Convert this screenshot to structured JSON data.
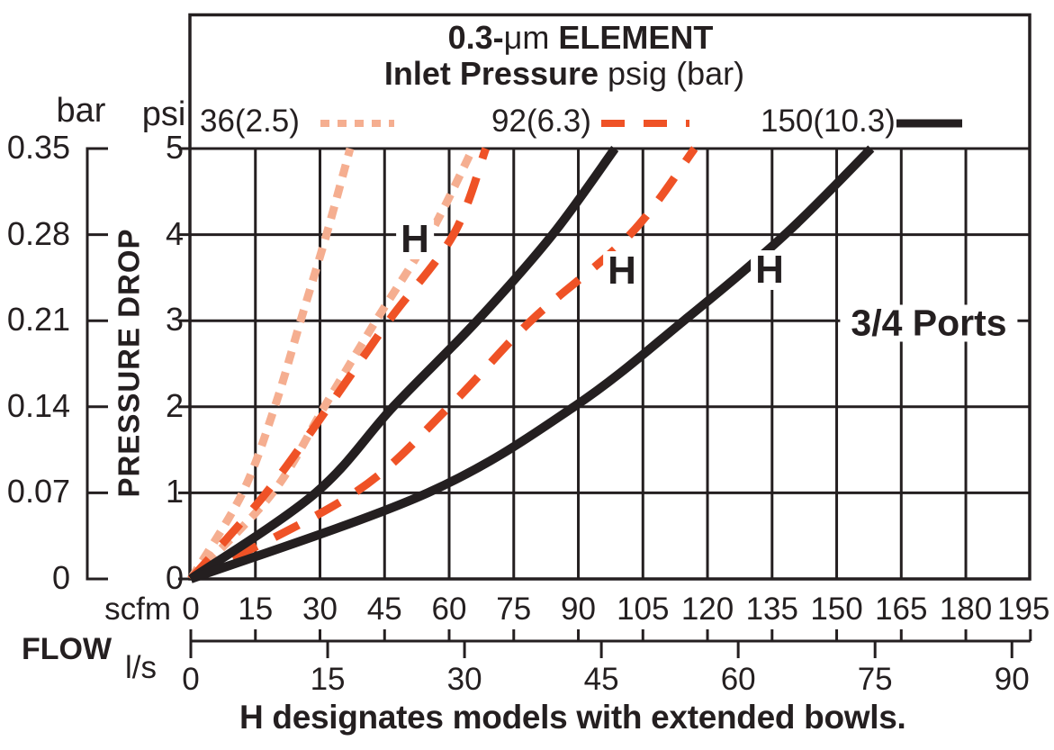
{
  "colors": {
    "ink": "#241F20",
    "peach": "#F5AE90",
    "orange": "#EF5226",
    "background": "#FFFFFF"
  },
  "title": {
    "part1": "0.3-",
    "mu_part": "μm",
    "part2": " ELEMENT",
    "line2_bold": "Inlet Pressure",
    "line2_rest": " psig (bar)"
  },
  "legend": {
    "items": [
      {
        "label": "36(2.5)",
        "color_key": "peach",
        "dash": "10 9",
        "width": 8
      },
      {
        "label": "92(6.3)",
        "color_key": "orange",
        "dash": "26 21",
        "width": 8
      },
      {
        "label": "150(10.3)",
        "color_key": "ink",
        "dash": null,
        "width": 9
      }
    ]
  },
  "axes": {
    "bar_unit": "bar",
    "psi_unit": "psi",
    "bar_ticks": [
      "0.35",
      "0.28",
      "0.21",
      "0.14",
      "0.07",
      "0"
    ],
    "psi_ticks": [
      "5",
      "4",
      "3",
      "2",
      "1",
      "0"
    ],
    "pressure_label": "PRESSURE DROP",
    "scfm_unit": "scfm",
    "scfm_ticks": [
      "0",
      "15",
      "30",
      "45",
      "60",
      "75",
      "90",
      "105",
      "120",
      "135",
      "150",
      "165",
      "180",
      "195"
    ],
    "flow_label": "FLOW",
    "ls_unit": "l/s",
    "ls_ticks": [
      "0",
      "15",
      "30",
      "45",
      "60",
      "75",
      "90"
    ]
  },
  "annotations": {
    "h_label_1": "H",
    "h_label_2": "H",
    "h_label_3": "H",
    "ports": "3/4 Ports"
  },
  "caption": "H designates models with extended bowls.",
  "chart_data": {
    "type": "line",
    "title": "0.3-μm ELEMENT",
    "subtitle": "Inlet Pressure psig (bar)",
    "xlabel": "FLOW — scfm (upper scale), l/s (lower scale)",
    "ylabel": "PRESSURE DROP — psi (inner scale), bar (outer scale)",
    "grid": true,
    "legend_position": "top",
    "annotation": "3/4 Ports",
    "note": "H designates models with extended bowls.",
    "x_axis": {
      "unit": "scfm",
      "range": [
        0,
        195
      ],
      "gridline_step": 15,
      "secondary_unit": "l/s",
      "secondary_range": [
        0,
        90
      ],
      "secondary_tick_step": 15
    },
    "y_axis": {
      "unit": "psi",
      "range": [
        0,
        5
      ],
      "gridline_step": 1,
      "secondary_unit": "bar",
      "secondary_ticks": [
        0.35,
        0.28,
        0.21,
        0.14,
        0.07,
        0
      ]
    },
    "psi_levels": [
      0,
      1,
      2,
      3,
      4,
      5
    ],
    "series": [
      {
        "key": "36-std",
        "name": "36 psig (2.5 bar) standard bowl",
        "inlet_psig": 36,
        "inlet_bar": 2.5,
        "style": "dotted",
        "color_key": "peach",
        "dash": "14 10",
        "width": 9,
        "scfm_at_psi": [
          0,
          12,
          19.5,
          25.5,
          31.5,
          37
        ]
      },
      {
        "key": "36-h",
        "name": "36 psig (2.5 bar) H extended bowl",
        "inlet_psig": 36,
        "inlet_bar": 2.5,
        "style": "dotted",
        "color_key": "peach",
        "dash": "14 10",
        "width": 9,
        "scfm_at_psi": [
          0,
          19,
          31,
          43,
          55.5,
          65.5
        ]
      },
      {
        "key": "92-std",
        "name": "92 psig (6.3 bar) standard bowl",
        "inlet_psig": 92,
        "inlet_bar": 6.3,
        "style": "dashed",
        "color_key": "orange",
        "dash": "30 22",
        "width": 9,
        "scfm_at_psi": [
          0,
          17.5,
          32,
          46,
          61,
          68.5
        ]
      },
      {
        "key": "92-h",
        "name": "92 psig (6.3 bar) H extended bowl",
        "inlet_psig": 92,
        "inlet_bar": 6.3,
        "style": "dashed",
        "color_key": "orange",
        "dash": "30 22",
        "width": 9,
        "scfm_at_psi": [
          0,
          38,
          60,
          79,
          102,
          117
        ]
      },
      {
        "key": "150-std",
        "name": "150 psig (10.3 bar) standard bowl",
        "inlet_psig": 150,
        "inlet_bar": 10.3,
        "style": "solid",
        "color_key": "ink",
        "dash": null,
        "width": 10,
        "scfm_at_psi": [
          0,
          29,
          47,
          66.5,
          84,
          98.5
        ]
      },
      {
        "key": "150-h",
        "name": "150 psig (10.3 bar) H extended bowl",
        "inlet_psig": 150,
        "inlet_bar": 10.3,
        "style": "solid",
        "color_key": "ink",
        "dash": null,
        "width": 10,
        "scfm_at_psi": [
          0,
          55,
          89,
          114.5,
          138,
          158
        ]
      }
    ]
  }
}
